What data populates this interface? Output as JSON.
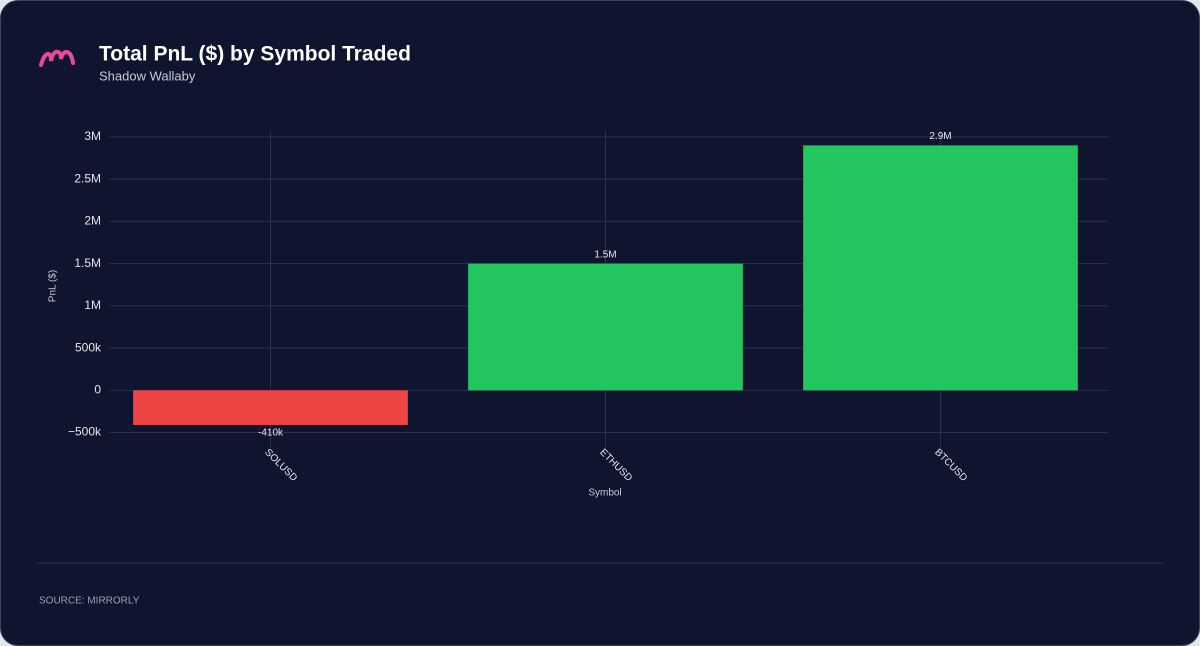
{
  "chart_data": {
    "type": "bar",
    "title": "Total PnL ($) by Symbol Traded",
    "subtitle": "Shadow Wallaby",
    "categories": [
      "SOLUSD",
      "ETHUSD",
      "BTCUSD"
    ],
    "values": [
      -410000,
      1500000,
      2900000
    ],
    "value_labels": [
      "-410k",
      "1.5M",
      "2.9M"
    ],
    "colors": [
      "#ef4444",
      "#22c55e",
      "#22c55e"
    ],
    "xlabel": "Symbol",
    "ylabel": "PnL ($)",
    "ylim": [
      -600000,
      3070000
    ],
    "yticks": [
      {
        "value": -500000,
        "label": "−500k"
      },
      0,
      {
        "value": 500000,
        "label": "500k"
      },
      {
        "value": 1000000,
        "label": "1M"
      },
      {
        "value": 1500000,
        "label": "1.5M"
      },
      {
        "value": 2000000,
        "label": "2M"
      },
      {
        "value": 2500000,
        "label": "2.5M"
      },
      {
        "value": 3000000,
        "label": "3M"
      }
    ],
    "grid": true
  },
  "footer": {
    "source": "SOURCE: MIRRORLY"
  }
}
